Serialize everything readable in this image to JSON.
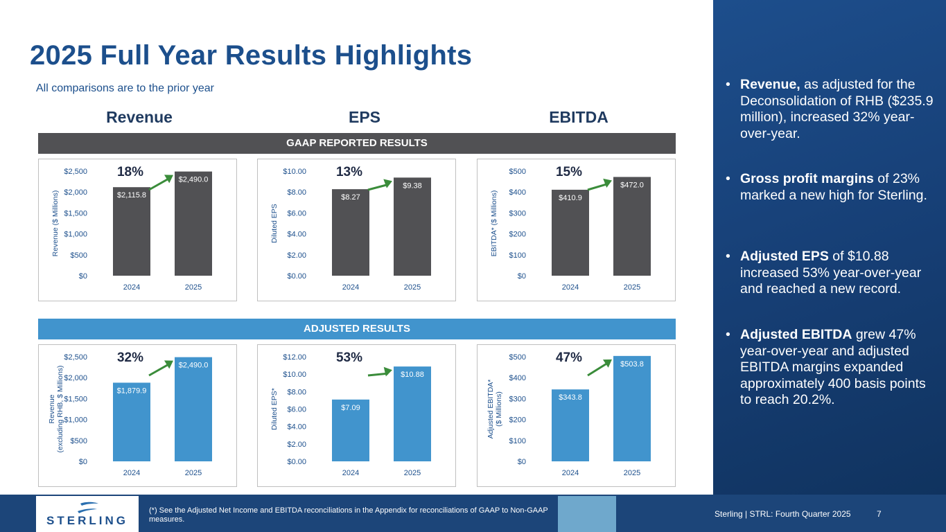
{
  "title": "2025 Full Year Results Highlights",
  "subtitle": "All comparisons are to the prior year",
  "columns": [
    "Revenue",
    "EPS",
    "EBITDA"
  ],
  "bands": {
    "gaap": "GAAP REPORTED RESULTS",
    "adjusted": "ADJUSTED RESULTS"
  },
  "colors": {
    "gaap_bar": "#515154",
    "adjusted_bar": "#4194cd",
    "arrow": "#3a8c3a",
    "navy": "#1c4f8c"
  },
  "chart_data": [
    {
      "type": "bar",
      "group": "GAAP REPORTED RESULTS",
      "metric": "Revenue",
      "categories": [
        "2024",
        "2025"
      ],
      "values": [
        2115.8,
        2490.0
      ],
      "value_labels": [
        "$2,115.8",
        "$2,490.0"
      ],
      "ylabel": "Revenue ($ Millions)",
      "ylabel2": "",
      "ylim": [
        0,
        2500
      ],
      "ticks": [
        "$0",
        "$500",
        "$1,000",
        "$1,500",
        "$2,000",
        "$2,500"
      ],
      "growth": "18%"
    },
    {
      "type": "bar",
      "group": "GAAP REPORTED RESULTS",
      "metric": "EPS",
      "categories": [
        "2024",
        "2025"
      ],
      "values": [
        8.27,
        9.38
      ],
      "value_labels": [
        "$8.27",
        "$9.38"
      ],
      "ylabel": "Diluted EPS",
      "ylabel2": "",
      "ylim": [
        0,
        10
      ],
      "ticks": [
        "$0.00",
        "$2.00",
        "$4.00",
        "$6.00",
        "$8.00",
        "$10.00"
      ],
      "growth": "13%"
    },
    {
      "type": "bar",
      "group": "GAAP REPORTED RESULTS",
      "metric": "EBITDA",
      "categories": [
        "2024",
        "2025"
      ],
      "values": [
        410.9,
        472.0
      ],
      "value_labels": [
        "$410.9",
        "$472.0"
      ],
      "ylabel": "EBITDA* ($ Millions)",
      "ylabel2": "",
      "ylim": [
        0,
        500
      ],
      "ticks": [
        "$0",
        "$100",
        "$200",
        "$300",
        "$400",
        "$500"
      ],
      "growth": "15%"
    },
    {
      "type": "bar",
      "group": "ADJUSTED RESULTS",
      "metric": "Revenue",
      "categories": [
        "2024",
        "2025"
      ],
      "values": [
        1879.9,
        2490.0
      ],
      "value_labels": [
        "$1,879.9",
        "$2,490.0"
      ],
      "ylabel": "Revenue",
      "ylabel2": "(excluding RHB, $ Millions)",
      "ylim": [
        0,
        2500
      ],
      "ticks": [
        "$0",
        "$500",
        "$1,000",
        "$1,500",
        "$2,000",
        "$2,500"
      ],
      "growth": "32%"
    },
    {
      "type": "bar",
      "group": "ADJUSTED RESULTS",
      "metric": "EPS",
      "categories": [
        "2024",
        "2025"
      ],
      "values": [
        7.09,
        10.88
      ],
      "value_labels": [
        "$7.09",
        "$10.88"
      ],
      "ylabel": "Diluted EPS*",
      "ylabel2": "",
      "ylim": [
        0,
        12
      ],
      "ticks": [
        "$0.00",
        "$2.00",
        "$4.00",
        "$6.00",
        "$8.00",
        "$10.00",
        "$12.00"
      ],
      "growth": "53%"
    },
    {
      "type": "bar",
      "group": "ADJUSTED RESULTS",
      "metric": "EBITDA",
      "categories": [
        "2024",
        "2025"
      ],
      "values": [
        343.8,
        503.8
      ],
      "value_labels": [
        "$343.8",
        "$503.8"
      ],
      "ylabel": "Adjusted EBITDA*",
      "ylabel2": "($ Millions)",
      "ylim": [
        0,
        500
      ],
      "ticks": [
        "$0",
        "$100",
        "$200",
        "$300",
        "$400",
        "$500"
      ],
      "growth": "47%"
    }
  ],
  "bullets": [
    {
      "bold": "Revenue,",
      "text": " as adjusted for the Deconsolidation of RHB ($235.9 million), increased 32% year-over-year."
    },
    {
      "bold": "Gross profit margins",
      "text": " of 23% marked a new high for Sterling."
    },
    {
      "bold": "Adjusted EPS",
      "text": " of $10.88 increased 53% year-over-year and reached a new record."
    },
    {
      "bold": "Adjusted EBITDA",
      "text": " grew 47% year-over-year and adjusted EBITDA margins expanded approximately 400 basis points to reach 20.2%."
    }
  ],
  "footer": {
    "logo_text": "STERLING",
    "note": "(*) See the Adjusted Net Income and EBITDA reconciliations in the Appendix for reconciliations of GAAP to Non-GAAP measures.",
    "right_text": "Sterling | STRL:  Fourth Quarter 2025",
    "page_number": "7"
  }
}
